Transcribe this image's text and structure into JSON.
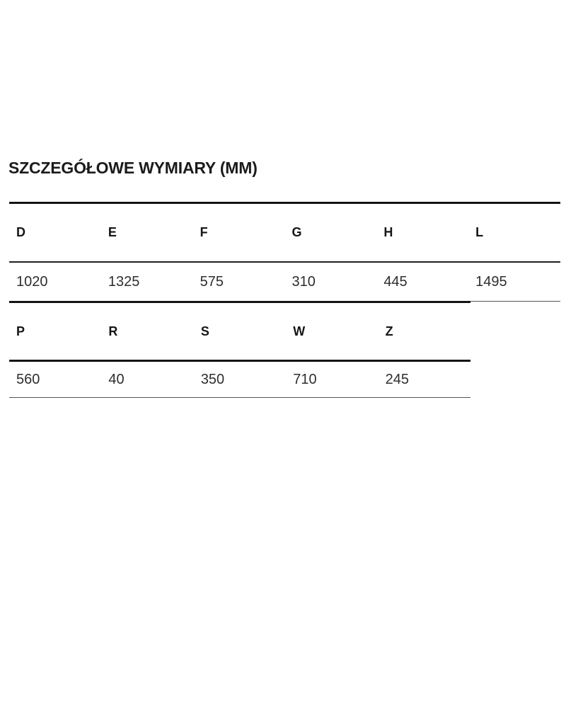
{
  "page": {
    "title": "SZCZEGÓŁOWE WYMIARY (MM)"
  },
  "tables": [
    {
      "name": "dimensions-group-1",
      "headers": [
        "D",
        "E",
        "F",
        "G",
        "H",
        "L"
      ],
      "values": [
        "1020",
        "1325",
        "575",
        "310",
        "445",
        "1495"
      ]
    },
    {
      "name": "dimensions-group-2",
      "headers": [
        "P",
        "R",
        "S",
        "W",
        "Z"
      ],
      "values": [
        "560",
        "40",
        "350",
        "710",
        "245"
      ]
    }
  ],
  "colors": {
    "title_text": "#1b1b1b",
    "header_text": "#161616",
    "value_text": "#2e2e2e",
    "line_heavy": "#141414",
    "line_medium": "#1f1f1f",
    "line_light": "#565656",
    "background": "#ffffff"
  }
}
